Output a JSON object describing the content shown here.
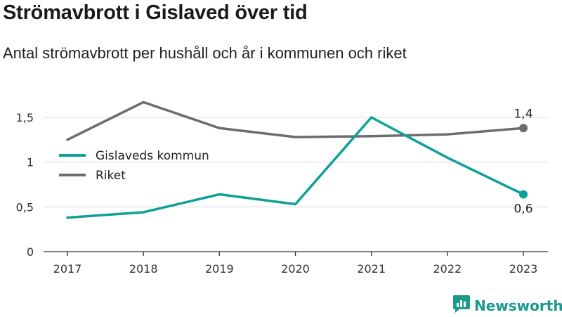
{
  "chart_data": {
    "type": "line",
    "title": "Strömavbrott i Gislaved över tid",
    "subtitle": "Antal strömavbrott per hushåll och år i kommunen och riket",
    "categories": [
      "2017",
      "2018",
      "2019",
      "2020",
      "2021",
      "2022",
      "2023"
    ],
    "series": [
      {
        "name": "Gislaveds kommun",
        "color": "#0fa197",
        "values": [
          0.38,
          0.44,
          0.64,
          0.53,
          1.5,
          1.05,
          0.64
        ],
        "end_label": "0,6"
      },
      {
        "name": "Riket",
        "color": "#6d6c71",
        "values": [
          1.25,
          1.67,
          1.38,
          1.28,
          1.29,
          1.31,
          1.38
        ],
        "end_label": "1,4"
      }
    ],
    "yticks": [
      {
        "value": 0,
        "label": "0"
      },
      {
        "value": 0.5,
        "label": "0,5"
      },
      {
        "value": 1,
        "label": "1"
      },
      {
        "value": 1.5,
        "label": "1,5"
      }
    ],
    "ylim": [
      0,
      1.5
    ],
    "grid": true,
    "legend_position": "left"
  },
  "brand": {
    "name": "Newsworthy",
    "logo_icon": "bar-chart-badge-icon"
  }
}
